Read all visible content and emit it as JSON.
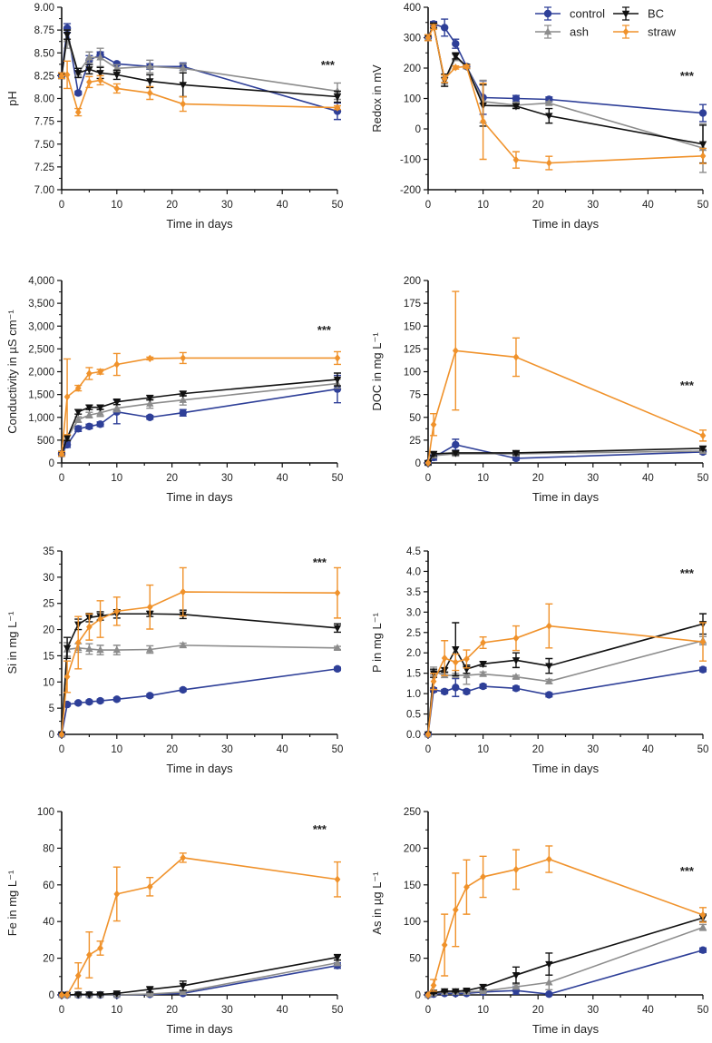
{
  "legend": [
    {
      "name": "control",
      "color": "#2e3f98",
      "marker": "circle"
    },
    {
      "name": "BC",
      "color": "#111111",
      "marker": "triangle-down"
    },
    {
      "name": "ash",
      "color": "#8c8c8c",
      "marker": "triangle-up"
    },
    {
      "name": "straw",
      "color": "#f0922b",
      "marker": "diamond"
    }
  ],
  "chart_data": [
    {
      "type": "line",
      "ylabel": "pH",
      "xlabel": "Time in days",
      "annotation": "***",
      "xlim": [
        0,
        50
      ],
      "xticks": [
        0,
        10,
        20,
        30,
        40,
        50
      ],
      "ylim": [
        7,
        9
      ],
      "ystep": 0.25,
      "ydecimals": 2,
      "x": [
        0,
        1,
        3,
        5,
        7,
        10,
        16,
        22,
        50
      ],
      "series": [
        {
          "name": "control",
          "values": [
            8.25,
            8.77,
            8.06,
            8.42,
            8.48,
            8.38,
            8.35,
            8.35,
            7.86
          ],
          "err": [
            0.03,
            0.05,
            0.02,
            0.05,
            0.03,
            0.02,
            0.03,
            0.04,
            0.09
          ]
        },
        {
          "name": "ash",
          "values": [
            8.25,
            8.65,
            8.28,
            8.45,
            8.45,
            8.33,
            8.35,
            8.33,
            8.08
          ],
          "err": [
            0.03,
            0.1,
            0.05,
            0.06,
            0.1,
            0.04,
            0.07,
            0.05,
            0.09
          ]
        },
        {
          "name": "BC",
          "values": [
            8.25,
            8.7,
            8.28,
            8.32,
            8.28,
            8.26,
            8.19,
            8.15,
            8.02
          ],
          "err": [
            0.03,
            0.05,
            0.05,
            0.05,
            0.06,
            0.05,
            0.07,
            0.13,
            0.06
          ]
        },
        {
          "name": "straw",
          "values": [
            8.25,
            8.26,
            7.85,
            8.18,
            8.2,
            8.11,
            8.06,
            7.94,
            7.9
          ],
          "err": [
            0.03,
            0.15,
            0.04,
            0.06,
            0.05,
            0.05,
            0.07,
            0.08,
            0.02
          ]
        }
      ]
    },
    {
      "type": "line",
      "ylabel": "Redox in mV",
      "xlabel": "Time in days",
      "annotation": "***",
      "xlim": [
        0,
        50
      ],
      "xticks": [
        0,
        10,
        20,
        30,
        40,
        50
      ],
      "ylim": [
        -200,
        400
      ],
      "ystep": 100,
      "ydecimals": 0,
      "x": [
        0,
        1,
        3,
        5,
        7,
        10,
        16,
        22,
        50
      ],
      "series": [
        {
          "name": "control",
          "values": [
            300,
            345,
            333,
            280,
            205,
            103,
            100,
            97,
            52
          ],
          "err": [
            10,
            8,
            28,
            15,
            5,
            55,
            10,
            8,
            28
          ]
        },
        {
          "name": "ash",
          "values": [
            300,
            340,
            155,
            235,
            205,
            90,
            78,
            85,
            -63
          ],
          "err": [
            10,
            8,
            15,
            10,
            5,
            70,
            10,
            5,
            80
          ]
        },
        {
          "name": "BC",
          "values": [
            300,
            340,
            160,
            240,
            205,
            77,
            75,
            43,
            -50
          ],
          "err": [
            10,
            8,
            20,
            10,
            5,
            68,
            8,
            24,
            62
          ]
        },
        {
          "name": "straw",
          "values": [
            300,
            335,
            165,
            202,
            205,
            25,
            -102,
            -112,
            -89
          ],
          "err": [
            10,
            8,
            12,
            5,
            5,
            125,
            27,
            22,
            25
          ]
        }
      ]
    },
    {
      "type": "line",
      "ylabel": "Conductivity in µS cm⁻¹",
      "xlabel": "Time in days",
      "annotation": "***",
      "xlim": [
        0,
        50
      ],
      "xticks": [
        0,
        10,
        20,
        30,
        40,
        50
      ],
      "ylim": [
        0,
        4000
      ],
      "ystep": 500,
      "ydecimals": 0,
      "ythousands": true,
      "x": [
        0,
        1,
        3,
        5,
        7,
        10,
        16,
        22,
        50
      ],
      "series": [
        {
          "name": "control",
          "values": [
            200,
            400,
            750,
            800,
            850,
            1120,
            1000,
            1100,
            1620
          ],
          "err": [
            50,
            60,
            60,
            50,
            50,
            260,
            40,
            70,
            300
          ]
        },
        {
          "name": "ash",
          "values": [
            200,
            550,
            950,
            1050,
            1100,
            1200,
            1300,
            1380,
            1740
          ],
          "err": [
            50,
            60,
            60,
            60,
            80,
            80,
            100,
            110,
            100
          ]
        },
        {
          "name": "BC",
          "values": [
            200,
            550,
            1120,
            1220,
            1220,
            1340,
            1430,
            1520,
            1830
          ],
          "err": [
            50,
            60,
            50,
            50,
            50,
            60,
            50,
            50,
            140
          ]
        },
        {
          "name": "straw",
          "values": [
            200,
            1450,
            1640,
            1960,
            2000,
            2160,
            2290,
            2300,
            2300
          ],
          "err": [
            50,
            830,
            60,
            130,
            50,
            240,
            30,
            120,
            140
          ]
        }
      ]
    },
    {
      "type": "line",
      "ylabel": "DOC in mg L⁻¹",
      "xlabel": "Time in days",
      "annotation": "***",
      "xlim": [
        0,
        50
      ],
      "xticks": [
        0,
        10,
        20,
        30,
        40,
        50
      ],
      "ylim": [
        0,
        200
      ],
      "ystep": 25,
      "ydecimals": 0,
      "x": [
        0,
        1,
        5,
        16,
        50
      ],
      "series": [
        {
          "name": "control",
          "values": [
            0,
            6,
            20,
            5,
            12
          ],
          "err": [
            2,
            3,
            6,
            2,
            2
          ]
        },
        {
          "name": "ash",
          "values": [
            0,
            8,
            10,
            10,
            13
          ],
          "err": [
            2,
            2,
            2,
            2,
            2
          ]
        },
        {
          "name": "BC",
          "values": [
            0,
            10,
            11,
            11,
            16
          ],
          "err": [
            2,
            2,
            2,
            2,
            2
          ]
        },
        {
          "name": "straw",
          "values": [
            0,
            42,
            123,
            116,
            30
          ],
          "err": [
            0,
            12,
            65,
            21,
            6
          ]
        }
      ]
    },
    {
      "type": "line",
      "ylabel": "Si in mg L⁻¹",
      "xlabel": "Time in days",
      "annotation": "***",
      "xlim": [
        0,
        50
      ],
      "xticks": [
        0,
        10,
        20,
        30,
        40,
        50
      ],
      "ylim": [
        0,
        35
      ],
      "ystep": 5,
      "ydecimals": 0,
      "x": [
        0,
        1,
        3,
        5,
        7,
        10,
        16,
        22,
        50
      ],
      "series": [
        {
          "name": "control",
          "values": [
            0,
            5.7,
            6,
            6.2,
            6.4,
            6.7,
            7.4,
            8.5,
            12.5
          ],
          "err": [
            0,
            0.3,
            0.3,
            0.3,
            0.3,
            0.3,
            0.3,
            0.3,
            0.3
          ]
        },
        {
          "name": "ash",
          "values": [
            0,
            16.2,
            16.5,
            16.3,
            16.1,
            16.1,
            16.2,
            17,
            16.5
          ],
          "err": [
            0,
            1.3,
            0.8,
            1,
            0.9,
            0.9,
            0.7,
            0.4,
            0.3
          ]
        },
        {
          "name": "BC",
          "values": [
            0,
            16.5,
            21,
            22.3,
            22.6,
            23,
            23,
            22.9,
            20.3
          ],
          "err": [
            0,
            2,
            1,
            0.8,
            0.8,
            0.8,
            0.5,
            0.8,
            0.8
          ]
        },
        {
          "name": "straw",
          "values": [
            0,
            11,
            17.5,
            20.5,
            22,
            23.5,
            24.3,
            27.2,
            27
          ],
          "err": [
            0,
            3,
            5,
            2.5,
            3.5,
            2.7,
            4.2,
            4.6,
            4.8
          ]
        }
      ]
    },
    {
      "type": "line",
      "ylabel": "P in mg L⁻¹",
      "xlabel": "Time in days",
      "annotation": "***",
      "xlim": [
        0,
        50
      ],
      "xticks": [
        0,
        10,
        20,
        30,
        40,
        50
      ],
      "ylim": [
        0,
        4.5
      ],
      "ystep": 0.5,
      "ydecimals": 1,
      "x": [
        0,
        1,
        3,
        5,
        7,
        10,
        16,
        22,
        50
      ],
      "series": [
        {
          "name": "control",
          "values": [
            0,
            1.09,
            1.05,
            1.15,
            1.05,
            1.18,
            1.13,
            0.97,
            1.59
          ],
          "err": [
            0,
            0.05,
            0.05,
            0.22,
            0.05,
            0.05,
            0.05,
            0.05,
            0.05
          ]
        },
        {
          "name": "ash",
          "values": [
            0,
            1.55,
            1.45,
            1.45,
            1.45,
            1.48,
            1.41,
            1.3,
            2.3
          ],
          "err": [
            0,
            0.1,
            0.05,
            0.05,
            0.22,
            0.05,
            0.04,
            0.05,
            0.1
          ]
        },
        {
          "name": "BC",
          "values": [
            0,
            1.5,
            1.58,
            2.09,
            1.6,
            1.73,
            1.82,
            1.68,
            2.71
          ],
          "err": [
            0,
            0.1,
            0.05,
            0.65,
            0.1,
            0.06,
            0.18,
            0.18,
            0.25
          ]
        },
        {
          "name": "straw",
          "values": [
            0,
            1.3,
            1.87,
            1.77,
            1.85,
            2.25,
            2.36,
            2.66,
            2.27
          ],
          "err": [
            0,
            0.2,
            0.43,
            0.2,
            0.22,
            0.14,
            0.3,
            0.54,
            0.47
          ]
        }
      ]
    },
    {
      "type": "line",
      "ylabel": "Fe in mg L⁻¹",
      "xlabel": "Time in days",
      "annotation": "***",
      "xlim": [
        0,
        50
      ],
      "xticks": [
        0,
        10,
        20,
        30,
        40,
        50
      ],
      "ylim": [
        0,
        100
      ],
      "ystep": 20,
      "ydecimals": 0,
      "x": [
        0,
        1,
        3,
        5,
        7,
        10,
        16,
        22,
        50
      ],
      "series": [
        {
          "name": "control",
          "values": [
            0,
            0,
            0,
            0,
            0,
            0,
            0.3,
            0.8,
            16
          ],
          "err": [
            0,
            0,
            0,
            0,
            0,
            0,
            0.3,
            0.5,
            1.5
          ]
        },
        {
          "name": "ash",
          "values": [
            0,
            0,
            0,
            0,
            0,
            0,
            0.5,
            1.5,
            17.5
          ],
          "err": [
            0,
            0,
            0,
            0,
            0,
            0,
            0.5,
            0.8,
            1.5
          ]
        },
        {
          "name": "BC",
          "values": [
            0,
            0,
            0.3,
            0.3,
            0.3,
            0.8,
            3,
            5,
            20.5
          ],
          "err": [
            0,
            0,
            0.3,
            0.3,
            0.3,
            0.5,
            1.5,
            2.5,
            1.5
          ]
        },
        {
          "name": "straw",
          "values": [
            0,
            0,
            10.5,
            21.8,
            25.5,
            55,
            59,
            74.8,
            63
          ],
          "err": [
            0,
            0,
            7,
            12.5,
            3.8,
            14.7,
            5,
            2.5,
            9.5
          ]
        }
      ]
    },
    {
      "type": "line",
      "ylabel": "As in µg L⁻¹",
      "xlabel": "Time in days",
      "annotation": "***",
      "xlim": [
        0,
        50
      ],
      "xticks": [
        0,
        10,
        20,
        30,
        40,
        50
      ],
      "ylim": [
        0,
        250
      ],
      "ystep": 50,
      "ydecimals": 0,
      "x": [
        0,
        1,
        3,
        5,
        7,
        10,
        16,
        22,
        50
      ],
      "series": [
        {
          "name": "control",
          "values": [
            0,
            1,
            2,
            2,
            2,
            4,
            6,
            1,
            61
          ],
          "err": [
            0,
            1,
            1,
            1,
            1,
            1,
            5,
            1,
            3
          ]
        },
        {
          "name": "ash",
          "values": [
            0,
            2,
            4,
            4,
            4,
            5,
            11,
            17,
            92
          ],
          "err": [
            0,
            1,
            1,
            1,
            1,
            1,
            3,
            10,
            4
          ]
        },
        {
          "name": "BC",
          "values": [
            0,
            3,
            5,
            5,
            6,
            11,
            27,
            42,
            105
          ],
          "err": [
            0,
            1,
            1,
            1,
            1,
            3,
            11,
            15,
            5
          ]
        },
        {
          "name": "straw",
          "values": [
            0,
            13,
            68,
            116,
            147,
            161,
            171,
            185,
            109
          ],
          "err": [
            0,
            8,
            42,
            50,
            37,
            28,
            27,
            18,
            10
          ]
        }
      ]
    }
  ]
}
